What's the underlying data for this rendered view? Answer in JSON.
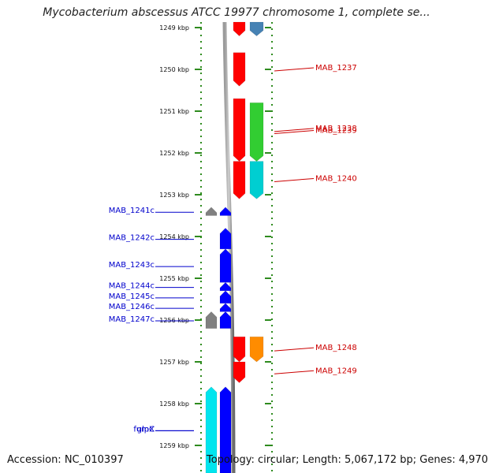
{
  "title": "Mycobacterium abscessus ATCC 19977 chromosome 1, complete se...",
  "footer": {
    "accession": "Accession: NC_010397",
    "topology": "Topology: circular; Length: 5,067,172 bp; Genes: 4,970"
  },
  "colors": {
    "forward_label": "#cc0000",
    "reverse_label": "#0000cc",
    "ruler_dots": "#2e8b1e",
    "backbone": "#888888"
  },
  "chart_data": {
    "type": "genome-map",
    "unit": "kbp",
    "view_range_kbp": [
      1248.6,
      1259.7
    ],
    "ticks_kbp": [
      1249,
      1250,
      1251,
      1252,
      1253,
      1254,
      1255,
      1256,
      1257,
      1258,
      1259
    ],
    "tick_labels": [
      "1249 kbp",
      "1250 kbp",
      "1251 kbp",
      "1252 kbp",
      "1253 kbp",
      "1254 kbp",
      "1255 kbp",
      "1256 kbp",
      "1257 kbp",
      "1258 kbp",
      "1259 kbp"
    ],
    "features": [
      {
        "track": "fwd-gene",
        "strand": "+",
        "start": 1248.6,
        "end": 1249.2,
        "color": "#ff0000"
      },
      {
        "track": "fwd-cds",
        "strand": "+",
        "start": 1248.6,
        "end": 1249.2,
        "color": "#4682b4"
      },
      {
        "track": "fwd-gene",
        "strand": "+",
        "start": 1249.6,
        "end": 1250.4,
        "color": "#ff0000",
        "label": "MAB_1237"
      },
      {
        "track": "fwd-gene",
        "strand": "+",
        "start": 1250.7,
        "end": 1252.2,
        "color": "#ff0000",
        "label": "MAB_1238"
      },
      {
        "track": "fwd-cds",
        "strand": "+",
        "start": 1250.8,
        "end": 1252.2,
        "color": "#32cd32",
        "label": "MAB_1239"
      },
      {
        "track": "fwd-gene",
        "strand": "+",
        "start": 1252.2,
        "end": 1253.1,
        "color": "#ff0000"
      },
      {
        "track": "fwd-cds",
        "strand": "+",
        "start": 1252.2,
        "end": 1253.1,
        "color": "#00ced1",
        "label": "MAB_1240"
      },
      {
        "track": "rev-cds",
        "strand": "-",
        "start": 1253.3,
        "end": 1253.5,
        "color": "#808080",
        "label": "MAB_1241c"
      },
      {
        "track": "rev-gene",
        "strand": "-",
        "start": 1253.3,
        "end": 1253.5,
        "color": "#0000ff"
      },
      {
        "track": "rev-gene",
        "strand": "-",
        "start": 1253.8,
        "end": 1254.3,
        "color": "#0000ff",
        "label": "MAB_1242c"
      },
      {
        "track": "rev-gene",
        "strand": "-",
        "start": 1254.3,
        "end": 1255.1,
        "color": "#0000ff",
        "label": "MAB_1243c"
      },
      {
        "track": "rev-gene",
        "strand": "-",
        "start": 1255.1,
        "end": 1255.3,
        "color": "#0000ff",
        "label": "MAB_1244c"
      },
      {
        "track": "rev-gene",
        "strand": "-",
        "start": 1255.3,
        "end": 1255.6,
        "color": "#0000ff",
        "label": "MAB_1245c"
      },
      {
        "track": "rev-gene",
        "strand": "-",
        "start": 1255.6,
        "end": 1255.8,
        "color": "#0000ff",
        "label": "MAB_1246c"
      },
      {
        "track": "rev-cds",
        "strand": "-",
        "start": 1255.8,
        "end": 1256.2,
        "color": "#808080",
        "label": "MAB_1247c"
      },
      {
        "track": "rev-gene",
        "strand": "-",
        "start": 1255.8,
        "end": 1256.2,
        "color": "#0000ff"
      },
      {
        "track": "fwd-gene",
        "strand": "+",
        "start": 1256.4,
        "end": 1257.0,
        "color": "#ff0000",
        "label": "MAB_1248"
      },
      {
        "track": "fwd-cds",
        "strand": "+",
        "start": 1256.4,
        "end": 1257.0,
        "color": "#ff8c00"
      },
      {
        "track": "fwd-gene",
        "strand": "+",
        "start": 1257.0,
        "end": 1257.5,
        "color": "#ff0000",
        "label": "MAB_1249"
      },
      {
        "track": "rev-cds",
        "strand": "-",
        "start": 1257.6,
        "end": 1259.7,
        "color": "#00e5ee",
        "label": "fumC"
      },
      {
        "track": "rev-gene",
        "strand": "-",
        "start": 1257.6,
        "end": 1259.7,
        "color": "#0000ff",
        "label": "glpX"
      }
    ]
  }
}
